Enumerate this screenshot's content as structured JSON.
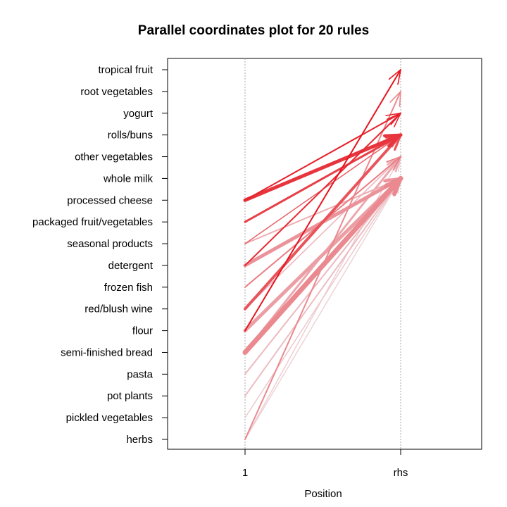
{
  "chart_data": {
    "type": "parallel-coordinates",
    "title": "Parallel coordinates plot for 20 rules",
    "xlabel": "Position",
    "x_ticks": [
      "1",
      "rhs"
    ],
    "y_items": [
      "tropical fruit",
      "root vegetables",
      "yogurt",
      "rolls/buns",
      "other vegetables",
      "whole milk",
      "processed cheese",
      "packaged fruit/vegetables",
      "seasonal products",
      "detergent",
      "frozen fish",
      "red/blush wine",
      "flour",
      "semi-finished bread",
      "pasta",
      "pot plants",
      "pickled vegetables",
      "herbs"
    ],
    "rules": [
      {
        "lhs": "herbs",
        "rhs": "root vegetables",
        "width": 2,
        "shade": 0.55
      },
      {
        "lhs": "flour",
        "rhs": "tropical fruit",
        "width": 2,
        "shade": 0.0
      },
      {
        "lhs": "processed cheese",
        "rhs": "yogurt",
        "width": 2,
        "shade": 0.05
      },
      {
        "lhs": "processed cheese",
        "rhs": "rolls/buns",
        "width": 5,
        "shade": 0.15
      },
      {
        "lhs": "packaged fruit/vegetables",
        "rhs": "rolls/buns",
        "width": 3,
        "shade": 0.2
      },
      {
        "lhs": "detergent",
        "rhs": "yogurt",
        "width": 2,
        "shade": 0.1
      },
      {
        "lhs": "seasonal products",
        "rhs": "rolls/buns",
        "width": 1.5,
        "shade": 0.35
      },
      {
        "lhs": "red/blush wine",
        "rhs": "rolls/buns",
        "width": 4,
        "shade": 0.3
      },
      {
        "lhs": "frozen fish",
        "rhs": "other vegetables",
        "width": 2,
        "shade": 0.5
      },
      {
        "lhs": "detergent",
        "rhs": "whole milk",
        "width": 5,
        "shade": 0.6
      },
      {
        "lhs": "semi-finished bread",
        "rhs": "whole milk",
        "width": 7,
        "shade": 0.55
      },
      {
        "lhs": "flour",
        "rhs": "whole milk",
        "width": 5,
        "shade": 0.65
      },
      {
        "lhs": "semi-finished bread",
        "rhs": "other vegetables",
        "width": 3,
        "shade": 0.7
      },
      {
        "lhs": "pasta",
        "rhs": "whole milk",
        "width": 2,
        "shade": 0.78
      },
      {
        "lhs": "pot plants",
        "rhs": "whole milk",
        "width": 2,
        "shade": 0.8
      },
      {
        "lhs": "pickled vegetables",
        "rhs": "whole milk",
        "width": 1.5,
        "shade": 0.85
      },
      {
        "lhs": "herbs",
        "rhs": "other vegetables",
        "width": 1.5,
        "shade": 0.88
      },
      {
        "lhs": "herbs",
        "rhs": "whole milk",
        "width": 1.5,
        "shade": 0.9
      },
      {
        "lhs": "red/blush wine",
        "rhs": "other vegetables",
        "width": 1.5,
        "shade": 0.75
      },
      {
        "lhs": "seasonal products",
        "rhs": "whole milk",
        "width": 2,
        "shade": 0.72
      }
    ]
  }
}
